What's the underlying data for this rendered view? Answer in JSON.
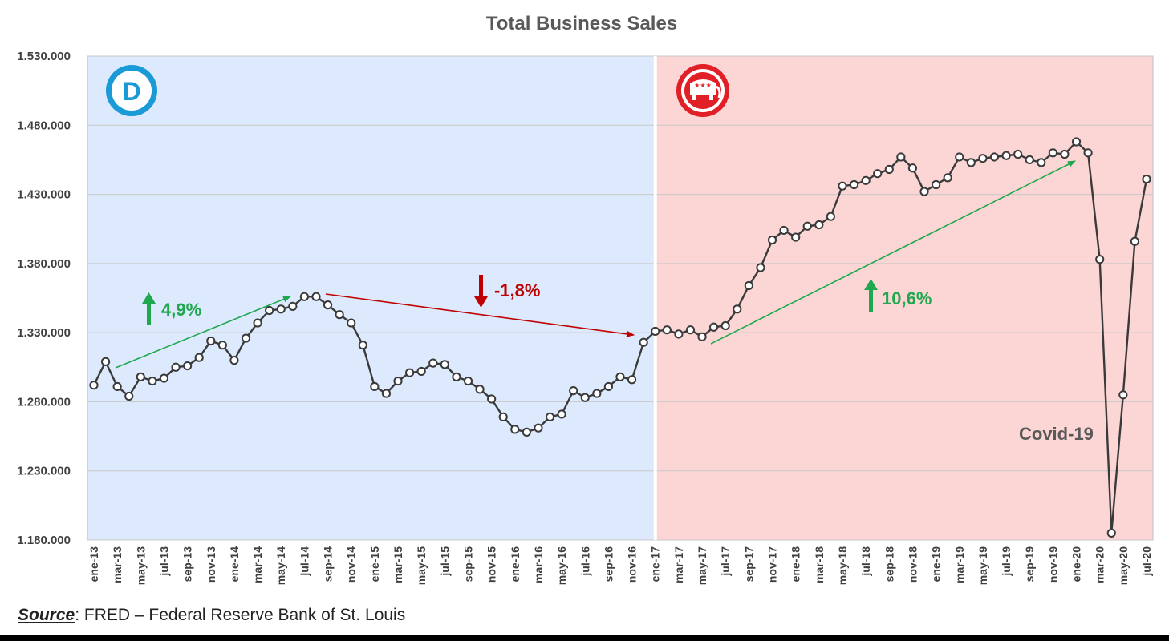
{
  "chart_data": {
    "type": "line",
    "title": "Total Business Sales",
    "xlabel": "",
    "ylabel": "",
    "ylim": [
      1180000,
      1530000
    ],
    "yticks": [
      "1.180.000",
      "1.230.000",
      "1.280.000",
      "1.330.000",
      "1.380.000",
      "1.430.000",
      "1.480.000",
      "1.530.000"
    ],
    "ytick_values": [
      1180000,
      1230000,
      1280000,
      1330000,
      1380000,
      1430000,
      1480000,
      1530000
    ],
    "grid": true,
    "x": [
      "ene-13",
      "feb-13",
      "mar-13",
      "abr-13",
      "may-13",
      "jun-13",
      "jul-13",
      "ago-13",
      "sep-13",
      "oct-13",
      "nov-13",
      "dic-13",
      "ene-14",
      "feb-14",
      "mar-14",
      "abr-14",
      "may-14",
      "jun-14",
      "jul-14",
      "ago-14",
      "sep-14",
      "oct-14",
      "nov-14",
      "dic-14",
      "ene-15",
      "feb-15",
      "mar-15",
      "abr-15",
      "may-15",
      "jun-15",
      "jul-15",
      "ago-15",
      "sep-15",
      "oct-15",
      "nov-15",
      "dic-15",
      "ene-16",
      "feb-16",
      "mar-16",
      "abr-16",
      "may-16",
      "jun-16",
      "jul-16",
      "ago-16",
      "sep-16",
      "oct-16",
      "nov-16",
      "dic-16",
      "ene-17",
      "feb-17",
      "mar-17",
      "abr-17",
      "may-17",
      "jun-17",
      "jul-17",
      "ago-17",
      "sep-17",
      "oct-17",
      "nov-17",
      "dic-17",
      "ene-18",
      "feb-18",
      "mar-18",
      "abr-18",
      "may-18",
      "jun-18",
      "jul-18",
      "ago-18",
      "sep-18",
      "oct-18",
      "nov-18",
      "dic-18",
      "ene-19",
      "feb-19",
      "mar-19",
      "abr-19",
      "may-19",
      "jun-19",
      "jul-19",
      "ago-19",
      "sep-19",
      "oct-19",
      "nov-19",
      "dic-19",
      "ene-20",
      "feb-20",
      "mar-20",
      "abr-20",
      "may-20",
      "jun-20",
      "jul-20"
    ],
    "xtick_labels": [
      "ene-13",
      "mar-13",
      "may-13",
      "jul-13",
      "sep-13",
      "nov-13",
      "ene-14",
      "mar-14",
      "may-14",
      "jul-14",
      "sep-14",
      "nov-14",
      "ene-15",
      "mar-15",
      "may-15",
      "jul-15",
      "sep-15",
      "nov-15",
      "ene-16",
      "mar-16",
      "may-16",
      "jul-16",
      "sep-16",
      "nov-16",
      "ene-17",
      "mar-17",
      "may-17",
      "jul-17",
      "sep-17",
      "nov-17",
      "ene-18",
      "mar-18",
      "may-18",
      "jul-18",
      "sep-18",
      "nov-18",
      "ene-19",
      "mar-19",
      "may-19",
      "jul-19",
      "sep-19",
      "nov-19",
      "ene-20",
      "mar-20",
      "may-20",
      "jul-20"
    ],
    "series": [
      {
        "values": [
          1292000,
          1309000,
          1291000,
          1284000,
          1298000,
          1295000,
          1297000,
          1305000,
          1306000,
          1312000,
          1324000,
          1321000,
          1310000,
          1326000,
          1337000,
          1346000,
          1347000,
          1349000,
          1356000,
          1356000,
          1350000,
          1343000,
          1337000,
          1321000,
          1291000,
          1286000,
          1295000,
          1301000,
          1302000,
          1308000,
          1307000,
          1298000,
          1295000,
          1289000,
          1282000,
          1269000,
          1260000,
          1258000,
          1261000,
          1269000,
          1271000,
          1288000,
          1283000,
          1286000,
          1291000,
          1298000,
          1296000,
          1323000,
          1331000,
          1332000,
          1329000,
          1332000,
          1327000,
          1334000,
          1335000,
          1347000,
          1364000,
          1377000,
          1397000,
          1404000,
          1399000,
          1407000,
          1408000,
          1414000,
          1436000,
          1437000,
          1440000,
          1445000,
          1448000,
          1457000,
          1449000,
          1432000,
          1437000,
          1442000,
          1457000,
          1453000,
          1456000,
          1457000,
          1458000,
          1459000,
          1455000,
          1453000,
          1460000,
          1459000,
          1468000,
          1460000,
          1383000,
          1185000,
          1285000,
          1396000,
          1441000
        ]
      }
    ],
    "periods": [
      {
        "party": "D",
        "from": "ene-13",
        "to": "ene-17",
        "color": "#dde9fc"
      },
      {
        "party": "R",
        "from": "ene-17",
        "to": "jul-20",
        "color": "#fcd5d5"
      }
    ],
    "annotations": [
      {
        "text": "4,9%",
        "direction": "up",
        "color": "#1fa84f"
      },
      {
        "text": "-1,8%",
        "direction": "down",
        "color": "#c00000"
      },
      {
        "text": "10,6%",
        "direction": "up",
        "color": "#1fa84f"
      },
      {
        "text": "Covid-19",
        "color": "#595959"
      }
    ],
    "logos": [
      {
        "name": "democratic-logo",
        "letter": "D",
        "color": "#1a9ad6"
      },
      {
        "name": "republican-elephant-logo",
        "color": "#e01f26"
      }
    ],
    "colors": {
      "line": "#3a3a3a",
      "grid": "#c8c8c8",
      "divider": "#ffffff"
    }
  },
  "source": {
    "label": "Source",
    "text": ": FRED – Federal Reserve Bank of St. Louis"
  }
}
